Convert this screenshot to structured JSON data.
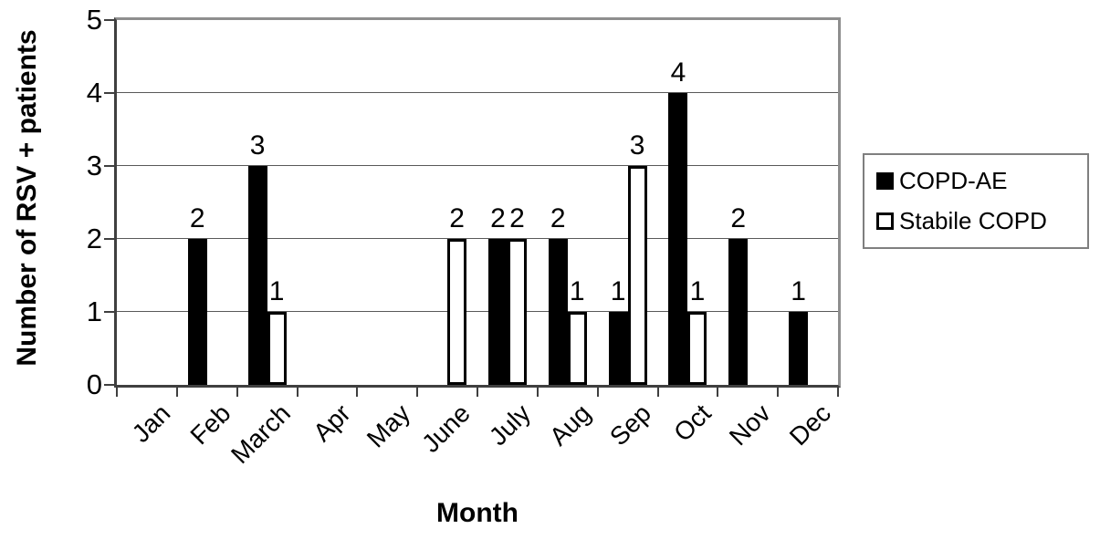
{
  "chart_data": {
    "type": "bar",
    "title": "",
    "xlabel": "Month",
    "ylabel": "Number of RSV + patients",
    "ylim": [
      0,
      5
    ],
    "yticks": [
      0,
      1,
      2,
      3,
      4,
      5
    ],
    "grid": true,
    "value_labels_shown": true,
    "zero_values_hidden": true,
    "legend_position": "right",
    "categories": [
      "Jan",
      "Feb",
      "March",
      "Apr",
      "May",
      "June",
      "July",
      "Aug",
      "Sep",
      "Oct",
      "Nov",
      "Dec"
    ],
    "series": [
      {
        "name": "COPD-AE",
        "fill": "#000000",
        "values": [
          0,
          2,
          3,
          0,
          0,
          0,
          2,
          2,
          1,
          4,
          2,
          1
        ]
      },
      {
        "name": "Stabile COPD",
        "fill": "#ffffff",
        "values": [
          0,
          0,
          1,
          0,
          0,
          2,
          2,
          1,
          3,
          1,
          0,
          0
        ]
      }
    ]
  },
  "colors": {
    "axis": "#3f3f3f",
    "plot_border": "#8e8e8e",
    "gridline": "#595959",
    "text": "#000000",
    "background": "#ffffff"
  }
}
